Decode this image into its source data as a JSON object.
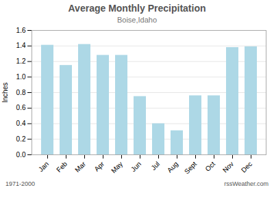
{
  "chart_data": {
    "type": "bar",
    "title": "Average Monthly Precipitation",
    "subtitle": "Boise,Idaho",
    "ylabel": "Inches",
    "categories": [
      "Jan",
      "Feb",
      "Mar",
      "Apr",
      "May",
      "Jun",
      "Jul",
      "Aug",
      "Sept",
      "Oct",
      "Nov",
      "Dec"
    ],
    "values": [
      1.41,
      1.15,
      1.42,
      1.28,
      1.28,
      0.75,
      0.4,
      0.31,
      0.76,
      0.76,
      1.38,
      1.39
    ],
    "color": "#ADD8E6",
    "ylim": [
      0.0,
      1.6
    ],
    "yticks": [
      {
        "value": 0.0,
        "label": "0.0"
      },
      0.2,
      0.4,
      0.6,
      0.8,
      {
        "value": 1.0,
        "label": "1.0"
      },
      1.2,
      1.4,
      1.6
    ],
    "grid": true,
    "annotations": [
      "1971-2000",
      "rssWeather.com"
    ]
  }
}
